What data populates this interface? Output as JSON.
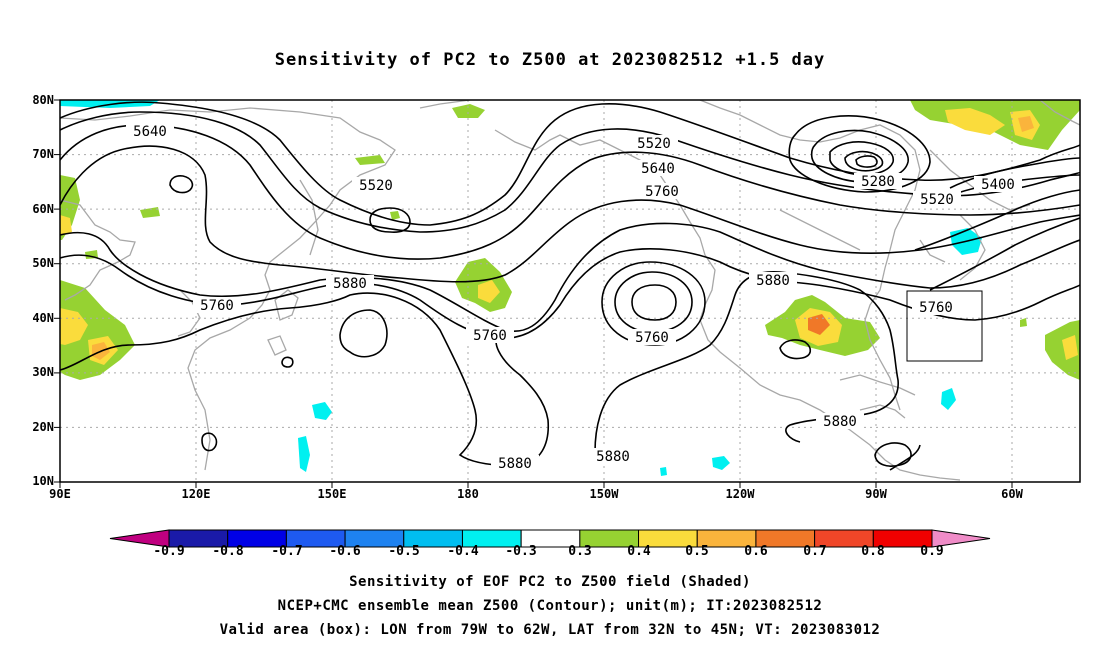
{
  "title": "Sensitivity of PC2 to Z500 at 2023082512 +1.5 day",
  "lat_ticks": [
    "80N",
    "70N",
    "60N",
    "50N",
    "40N",
    "30N",
    "20N",
    "10N"
  ],
  "lon_ticks": [
    "90E",
    "120E",
    "150E",
    "180",
    "150W",
    "120W",
    "90W",
    "60W"
  ],
  "contour_labels": [
    "5640",
    "5520",
    "5880",
    "5760",
    "5760",
    "5520",
    "5640",
    "5760",
    "5760",
    "5880",
    "5520",
    "5280",
    "5400",
    "5760",
    "5880",
    "5880",
    "5880"
  ],
  "colorbar": {
    "labels": [
      "-0.9",
      "-0.8",
      "-0.7",
      "-0.6",
      "-0.5",
      "-0.4",
      "-0.3",
      "0.3",
      "0.4",
      "0.5",
      "0.6",
      "0.7",
      "0.8",
      "0.9"
    ],
    "colors": [
      "#c00080",
      "#1a1aa8",
      "#0000e6",
      "#1e5af0",
      "#1e82f0",
      "#00bef0",
      "#00f0f0",
      "#ffffff",
      "#96d232",
      "#fadc3c",
      "#fab43c",
      "#f07828",
      "#f04628",
      "#f00000",
      "#f08cc8"
    ]
  },
  "shading_colors": {
    "cyan": "#00f0f0",
    "green": "#96d232",
    "yellow": "#fadc3c",
    "orange": "#fab43c",
    "deep_orange": "#f07828"
  },
  "caption": {
    "line1": "Sensitivity of EOF PC2 to Z500 field (Shaded)",
    "line2": "NCEP+CMC ensemble mean Z500 (Contour); unit(m); IT:2023082512",
    "line3": "Valid area (box): LON from 79W to 62W, LAT from 32N to 45N; VT: 2023083012"
  }
}
